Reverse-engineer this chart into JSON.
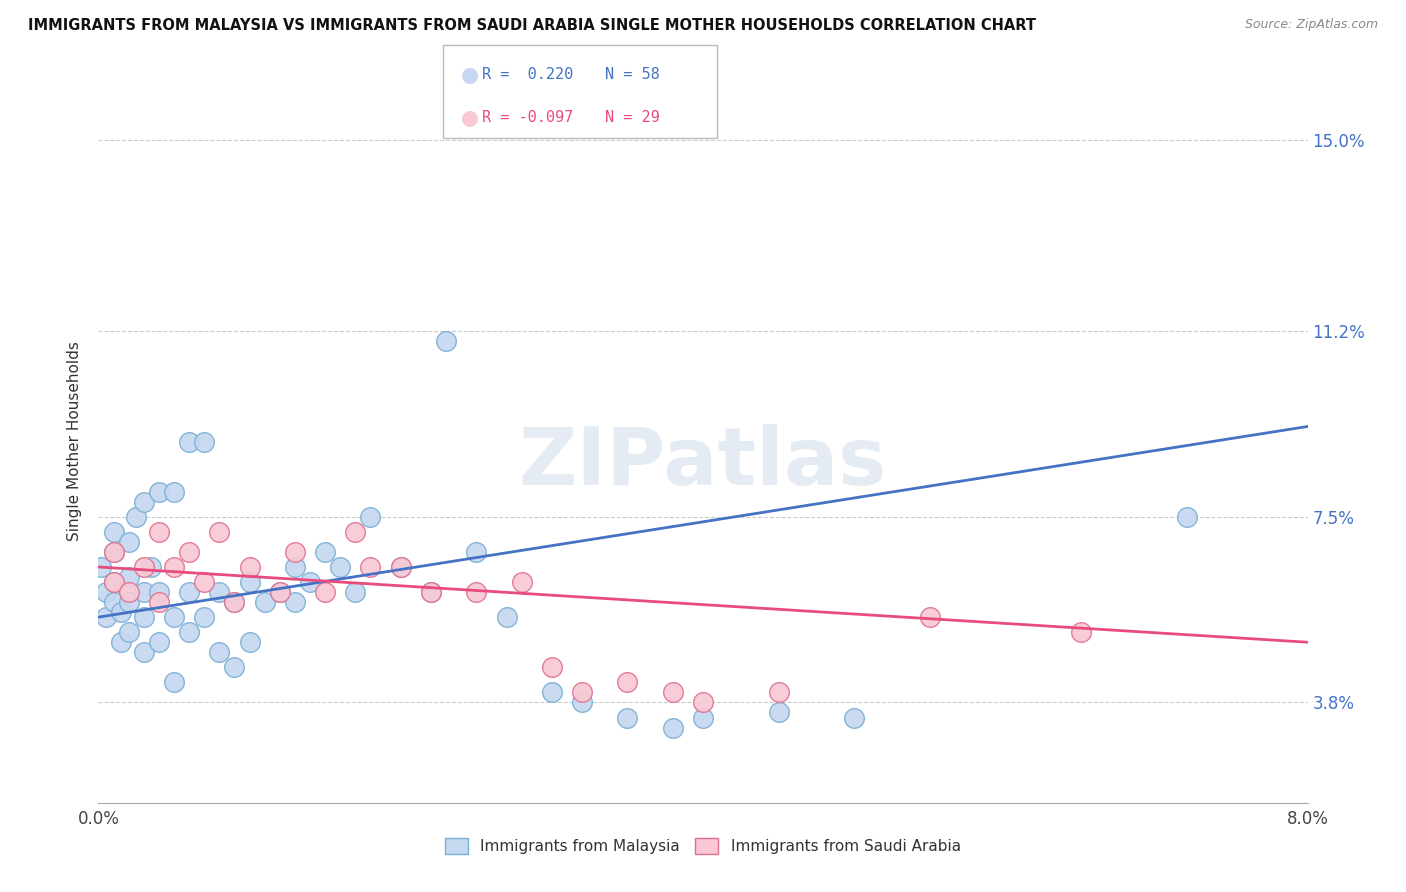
{
  "title": "IMMIGRANTS FROM MALAYSIA VS IMMIGRANTS FROM SAUDI ARABIA SINGLE MOTHER HOUSEHOLDS CORRELATION CHART",
  "source": "Source: ZipAtlas.com",
  "ylabel": "Single Mother Households",
  "yticks": [
    0.038,
    0.075,
    0.112,
    0.15
  ],
  "ytick_labels": [
    "3.8%",
    "7.5%",
    "11.2%",
    "15.0%"
  ],
  "xlim": [
    0.0,
    0.08
  ],
  "ylim": [
    0.018,
    0.162
  ],
  "legend_label_blue": "Immigrants from Malaysia",
  "legend_label_pink": "Immigrants from Saudi Arabia",
  "blue_color": "#c5d8f0",
  "blue_edge": "#7aafd4",
  "pink_color": "#f9c8d4",
  "pink_edge": "#e07090",
  "blue_line_color": "#4472C4",
  "pink_line_color": "#E84C7D",
  "watermark": "ZIPatlas",
  "blue_dots_x": [
    0.0002,
    0.0005,
    0.0005,
    0.001,
    0.001,
    0.001,
    0.001,
    0.0015,
    0.0015,
    0.002,
    0.002,
    0.002,
    0.002,
    0.0025,
    0.003,
    0.003,
    0.003,
    0.003,
    0.0035,
    0.004,
    0.004,
    0.004,
    0.005,
    0.005,
    0.005,
    0.006,
    0.006,
    0.006,
    0.007,
    0.007,
    0.008,
    0.008,
    0.009,
    0.009,
    0.01,
    0.01,
    0.011,
    0.012,
    0.013,
    0.013,
    0.014,
    0.015,
    0.016,
    0.017,
    0.018,
    0.02,
    0.022,
    0.023,
    0.025,
    0.027,
    0.03,
    0.032,
    0.035,
    0.038,
    0.04,
    0.045,
    0.05,
    0.072
  ],
  "blue_dots_y": [
    0.065,
    0.06,
    0.055,
    0.058,
    0.062,
    0.068,
    0.072,
    0.05,
    0.056,
    0.052,
    0.058,
    0.063,
    0.07,
    0.075,
    0.048,
    0.055,
    0.06,
    0.078,
    0.065,
    0.05,
    0.06,
    0.08,
    0.042,
    0.055,
    0.08,
    0.052,
    0.06,
    0.09,
    0.055,
    0.09,
    0.048,
    0.06,
    0.045,
    0.058,
    0.05,
    0.062,
    0.058,
    0.06,
    0.058,
    0.065,
    0.062,
    0.068,
    0.065,
    0.06,
    0.075,
    0.065,
    0.06,
    0.11,
    0.068,
    0.055,
    0.04,
    0.038,
    0.035,
    0.033,
    0.035,
    0.036,
    0.035,
    0.075
  ],
  "pink_dots_x": [
    0.001,
    0.001,
    0.002,
    0.003,
    0.004,
    0.004,
    0.005,
    0.006,
    0.007,
    0.008,
    0.009,
    0.01,
    0.012,
    0.013,
    0.015,
    0.017,
    0.018,
    0.02,
    0.022,
    0.025,
    0.028,
    0.03,
    0.032,
    0.035,
    0.038,
    0.04,
    0.045,
    0.055,
    0.065
  ],
  "pink_dots_y": [
    0.062,
    0.068,
    0.06,
    0.065,
    0.058,
    0.072,
    0.065,
    0.068,
    0.062,
    0.072,
    0.058,
    0.065,
    0.06,
    0.068,
    0.06,
    0.072,
    0.065,
    0.065,
    0.06,
    0.06,
    0.062,
    0.045,
    0.04,
    0.042,
    0.04,
    0.038,
    0.04,
    0.055,
    0.052
  ],
  "blue_trend_x": [
    0.0,
    0.08
  ],
  "blue_trend_y": [
    0.055,
    0.093
  ],
  "pink_trend_x": [
    0.0,
    0.08
  ],
  "pink_trend_y": [
    0.065,
    0.05
  ]
}
